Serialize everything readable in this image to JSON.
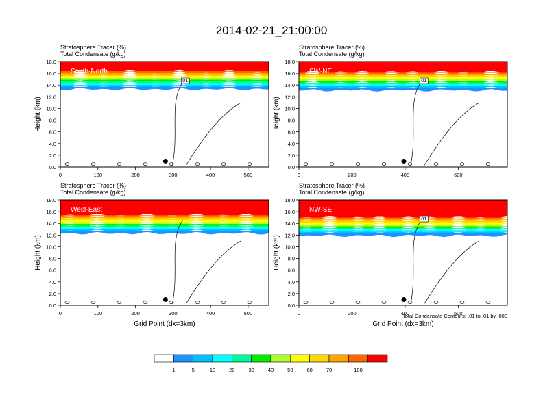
{
  "title": "2014-02-21_21:00:00",
  "colorbar": {
    "colors": [
      "#ffffff",
      "#1e90ff",
      "#00bfff",
      "#00ffff",
      "#00fa9a",
      "#00ee00",
      "#adff2f",
      "#ffff00",
      "#ffd700",
      "#ffa500",
      "#ff6600",
      "#ff0000"
    ],
    "labels": [
      "1",
      "5",
      "10",
      "20",
      "30",
      "40",
      "50",
      "60",
      "70",
      "100"
    ]
  },
  "chart_data": [
    {
      "type": "heatmap",
      "panel_label": "South-North",
      "subtitle_left": "Stratosphere Tracer   (%)",
      "subtitle_left2": "Total Condensate   (g/kg)",
      "ylabel": "Height (km)",
      "xlabel": "",
      "xlim": [
        0,
        555
      ],
      "xticks": [
        "0",
        "100",
        "200",
        "300",
        "400",
        "500"
      ],
      "xtick_values": [
        0,
        100,
        200,
        300,
        400,
        500
      ],
      "ylim": [
        0,
        18
      ],
      "yticks": [
        "0.0",
        "2.0",
        "4.0",
        "6.0",
        "8.0",
        "10.0",
        "12.0",
        "14.0",
        "16.0",
        "18.0"
      ],
      "tracer_top_km": 15.2,
      "contour_label": "01",
      "marker_x": 280,
      "marker_y_km": 1.0,
      "footer": ""
    },
    {
      "type": "heatmap",
      "panel_label": "SW-NE",
      "subtitle_left": "Stratosphere Tracer   (%)",
      "subtitle_left2": "Total Condensate   (g/kg)",
      "ylabel": "Height (km)",
      "xlabel": "",
      "xlim": [
        0,
        785
      ],
      "xticks": [
        "0",
        "200",
        "400",
        "600"
      ],
      "xtick_values": [
        0,
        200,
        400,
        600
      ],
      "ylim": [
        0,
        18
      ],
      "yticks": [
        "0.0",
        "2.0",
        "4.0",
        "6.0",
        "8.0",
        "10.0",
        "12.0",
        "14.0",
        "16.0",
        "18.0"
      ],
      "tracer_top_km": 15.0,
      "contour_label": "01",
      "marker_x": 395,
      "marker_y_km": 1.0,
      "footer": ""
    },
    {
      "type": "heatmap",
      "panel_label": "West-East",
      "subtitle_left": "Stratosphere Tracer   (%)",
      "subtitle_left2": "Total Condensate   (g/kg)",
      "ylabel": "Height (km)",
      "xlabel": "Grid Point (dx=3km)",
      "xlim": [
        0,
        555
      ],
      "xticks": [
        "0",
        "100",
        "200",
        "300",
        "400",
        "500"
      ],
      "xtick_values": [
        0,
        100,
        200,
        300,
        400,
        500
      ],
      "ylim": [
        0,
        18
      ],
      "yticks": [
        "0.0",
        "2.0",
        "4.0",
        "6.0",
        "8.0",
        "10.0",
        "12.0",
        "14.0",
        "16.0",
        "18.0"
      ],
      "tracer_top_km": 14.2,
      "contour_label": "",
      "marker_x": 280,
      "marker_y_km": 1.0,
      "footer": ""
    },
    {
      "type": "heatmap",
      "panel_label": "NW-SE",
      "subtitle_left": "Stratosphere Tracer   (%)",
      "subtitle_left2": "Total Condensate   (g/kg)",
      "ylabel": "Height (km)",
      "xlabel": "Grid Point (dx=3km)",
      "xlim": [
        0,
        785
      ],
      "xticks": [
        "0",
        "200",
        "400",
        "600"
      ],
      "xtick_values": [
        0,
        200,
        400,
        600
      ],
      "ylim": [
        0,
        18
      ],
      "yticks": [
        "0.0",
        "2.0",
        "4.0",
        "6.0",
        "8.0",
        "10.0",
        "12.0",
        "14.0",
        "16.0",
        "18.0"
      ],
      "tracer_top_km": 13.8,
      "contour_label": "01",
      "marker_x": 395,
      "marker_y_km": 1.0,
      "footer": "Total Condensate Contours: .01 to .01 by .000"
    }
  ]
}
